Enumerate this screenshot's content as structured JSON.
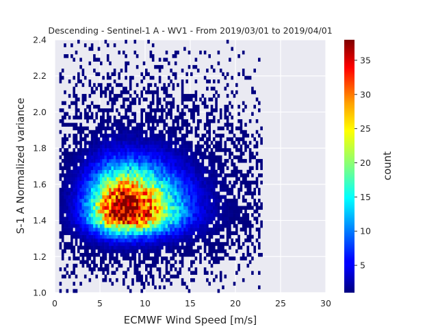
{
  "chart_data": {
    "type": "heatmap",
    "title": "Descending - Sentinel-1 A - WV1 - From 2019/03/01 to 2019/04/01",
    "xlabel": "ECMWF Wind Speed [m/s]",
    "ylabel": "S-1 A Normalized variance",
    "xlim": [
      0,
      30
    ],
    "ylim": [
      1.0,
      2.4
    ],
    "x_ticks": [
      "0",
      "5",
      "10",
      "15",
      "20",
      "25",
      "30"
    ],
    "y_ticks": [
      "1.0",
      "1.2",
      "1.4",
      "1.6",
      "1.8",
      "2.0",
      "2.2",
      "2.4"
    ],
    "grid": true,
    "colormap": "jet",
    "colorbar": {
      "label": "count",
      "range": [
        1,
        38
      ],
      "ticks": [
        "5",
        "10",
        "15",
        "20",
        "25",
        "30",
        "35"
      ]
    },
    "bin_size": {
      "x": 0.25,
      "y": 0.02
    },
    "density_peak": {
      "x": 7.5,
      "y": 1.44,
      "count": 38
    },
    "density_spread": {
      "x": 2.5,
      "y": 0.09
    },
    "data_extent": {
      "x_min": 0.5,
      "x_max": 23,
      "y_min": 1.0,
      "y_max": 2.4
    }
  }
}
